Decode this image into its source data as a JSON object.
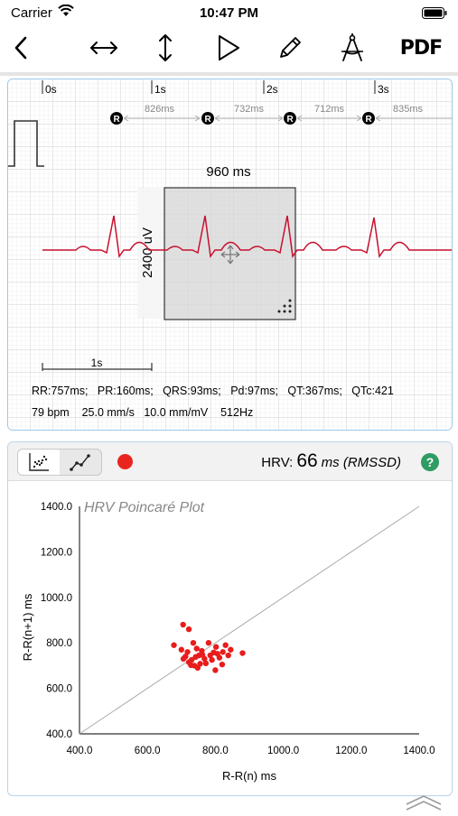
{
  "status_bar": {
    "carrier": "Carrier",
    "time": "10:47 PM"
  },
  "toolbar": {
    "pdf_label": "PDF"
  },
  "ecg": {
    "time_marks": [
      "0s",
      "1s",
      "2s",
      "3s"
    ],
    "r_marker": "R",
    "rr_intervals": [
      "826ms",
      "732ms",
      "712ms",
      "835ms"
    ],
    "caliper_width_label": "960 ms",
    "caliper_height_label": "2400 uV",
    "scale_bar_label": "1s",
    "measurements": "RR:757ms;   PR:160ms;   QRS:93ms;   Pd:97ms;   QT:367ms;   QTc:421",
    "settings": "79 bpm    25.0 mm/s   10.0 mm/mV    512Hz"
  },
  "hrv": {
    "label": "HRV:",
    "value": "66",
    "unit": "ms (RMSSD)",
    "help_label": "?"
  },
  "chart_data": {
    "type": "scatter",
    "title": "HRV Poincaré Plot",
    "xlabel": "R-R(n) ms",
    "ylabel": "R-R(n+1) ms",
    "xlim": [
      400,
      1400
    ],
    "ylim": [
      400,
      1400
    ],
    "x_ticks": [
      "400.0",
      "600.0",
      "800.0",
      "1000.0",
      "1200.0",
      "1400.0"
    ],
    "y_ticks": [
      "400.0",
      "600.0",
      "800.0",
      "1000.0",
      "1200.0",
      "1400.0"
    ],
    "identity_line": true,
    "point_color": "#e81c1c",
    "points": [
      [
        705,
        880
      ],
      [
        722,
        860
      ],
      [
        678,
        790
      ],
      [
        700,
        770
      ],
      [
        735,
        800
      ],
      [
        745,
        775
      ],
      [
        712,
        740
      ],
      [
        730,
        725
      ],
      [
        752,
        745
      ],
      [
        768,
        730
      ],
      [
        785,
        745
      ],
      [
        806,
        752
      ],
      [
        822,
        760
      ],
      [
        838,
        745
      ],
      [
        812,
        735
      ],
      [
        790,
        725
      ],
      [
        772,
        710
      ],
      [
        755,
        708
      ],
      [
        738,
        700
      ],
      [
        722,
        715
      ],
      [
        706,
        730
      ],
      [
        718,
        760
      ],
      [
        760,
        765
      ],
      [
        780,
        800
      ],
      [
        802,
        782
      ],
      [
        830,
        790
      ],
      [
        845,
        770
      ],
      [
        880,
        755
      ],
      [
        820,
        705
      ],
      [
        800,
        680
      ],
      [
        748,
        690
      ],
      [
        728,
        702
      ],
      [
        762,
        748
      ],
      [
        742,
        738
      ],
      [
        795,
        758
      ]
    ]
  }
}
